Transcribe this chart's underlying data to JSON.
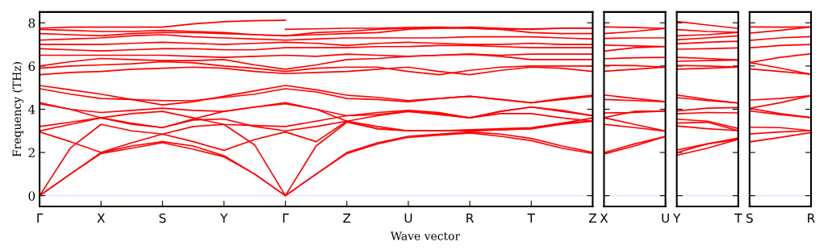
{
  "chart_data": [
    {
      "type": "line",
      "ylabel": "Frequency (THz)",
      "xlabel": "Wave vector",
      "color": "#ff0000",
      "marker": "none",
      "line_style": "solid",
      "grid": false,
      "legend": false,
      "categories": [
        "Γ",
        null,
        "X",
        null,
        "S",
        null,
        "Y",
        null,
        "Γ",
        null,
        "Z",
        null,
        "U",
        null,
        "R",
        null,
        "T",
        null,
        "Z"
      ],
      "ylim": [
        -0.5,
        8.5
      ],
      "yticks": [
        0,
        2,
        4,
        6,
        8
      ],
      "ref_lines": [
        {
          "axis": "y",
          "value": 0,
          "label": null,
          "color": "#8080ff",
          "line_style": "dotted"
        }
      ],
      "series": [
        {
          "values": [
            0,
            1.0,
            1.95,
            2.2,
            2.45,
            2.15,
            1.8,
            1.0,
            0,
            1.0,
            1.95,
            2.4,
            2.7,
            2.8,
            2.9,
            2.75,
            2.55,
            2.2,
            1.95
          ]
        },
        {
          "values": [
            0,
            1.0,
            2.0,
            2.3,
            2.5,
            2.3,
            1.85,
            1.0,
            0,
            1.0,
            2.0,
            2.45,
            2.75,
            2.85,
            2.95,
            2.85,
            2.65,
            2.3,
            2.0
          ]
        },
        {
          "values": [
            0,
            2.2,
            3.3,
            3.0,
            2.85,
            3.2,
            3.3,
            2.35,
            0,
            2.3,
            3.4,
            3.1,
            3.0,
            3.0,
            3.0,
            3.05,
            3.1,
            3.3,
            3.45
          ]
        },
        {
          "values": [
            2.95,
            2.5,
            2.0,
            2.45,
            2.85,
            2.5,
            2.1,
            2.6,
            2.95,
            2.5,
            3.45,
            3.2,
            3.0,
            3.0,
            3.0,
            3.05,
            3.1,
            3.35,
            3.6
          ]
        },
        {
          "values": [
            3.0,
            3.3,
            3.6,
            3.35,
            3.15,
            3.5,
            3.55,
            3.2,
            3.0,
            3.2,
            3.45,
            3.7,
            3.9,
            3.75,
            3.6,
            3.9,
            4.1,
            3.9,
            3.7
          ]
        },
        {
          "values": [
            3.2,
            3.4,
            3.6,
            3.8,
            3.9,
            3.6,
            3.3,
            3.25,
            3.2,
            3.45,
            3.7,
            3.75,
            3.9,
            3.8,
            3.6,
            3.8,
            3.8,
            3.6,
            3.45
          ]
        },
        {
          "values": [
            4.25,
            4.0,
            3.85,
            3.95,
            4.05,
            3.95,
            3.9,
            4.1,
            4.25,
            4.0,
            3.7,
            3.85,
            3.95,
            3.85,
            3.6,
            3.9,
            4.1,
            3.95,
            3.7
          ]
        },
        {
          "values": [
            4.3,
            4.0,
            3.6,
            3.3,
            3.15,
            3.55,
            3.9,
            4.1,
            4.3,
            4.0,
            3.45,
            3.1,
            3.0,
            3.0,
            3.05,
            3.1,
            3.15,
            3.35,
            3.45
          ]
        },
        {
          "values": [
            4.95,
            4.7,
            4.5,
            4.45,
            4.4,
            4.4,
            4.55,
            4.7,
            4.95,
            4.8,
            4.5,
            4.45,
            4.35,
            4.5,
            4.6,
            4.45,
            4.3,
            4.45,
            4.6
          ]
        },
        {
          "values": [
            5.1,
            4.9,
            4.7,
            4.45,
            4.2,
            4.35,
            4.6,
            4.85,
            5.1,
            4.9,
            4.65,
            4.55,
            4.4,
            4.5,
            4.6,
            4.45,
            4.3,
            4.5,
            4.65
          ]
        },
        {
          "values": [
            5.6,
            5.7,
            5.75,
            5.85,
            5.9,
            5.95,
            5.9,
            5.75,
            5.65,
            5.7,
            5.75,
            5.85,
            5.95,
            5.75,
            5.6,
            5.8,
            5.95,
            5.9,
            5.75
          ]
        },
        {
          "values": [
            5.9,
            6.0,
            6.05,
            6.1,
            6.2,
            6.15,
            6.0,
            5.9,
            5.75,
            5.9,
            5.95,
            5.95,
            5.75,
            5.6,
            5.8,
            5.95,
            6.0,
            6.0,
            6.0
          ]
        },
        {
          "values": [
            6.0,
            6.2,
            6.35,
            6.3,
            6.25,
            6.25,
            6.3,
            6.05,
            5.85,
            6.05,
            6.3,
            6.35,
            6.45,
            6.5,
            6.55,
            6.45,
            6.3,
            6.3,
            6.3
          ]
        },
        {
          "values": [
            6.5,
            6.5,
            6.5,
            6.5,
            6.5,
            6.45,
            6.4,
            6.45,
            6.5,
            6.45,
            6.55,
            6.5,
            6.45,
            6.5,
            6.55,
            6.5,
            6.55,
            6.55,
            6.55
          ]
        },
        {
          "values": [
            6.8,
            6.75,
            6.7,
            6.75,
            6.8,
            6.8,
            6.75,
            6.75,
            6.85,
            6.85,
            6.85,
            6.9,
            6.9,
            6.95,
            6.95,
            6.9,
            6.85,
            6.85,
            6.85
          ]
        },
        {
          "values": [
            7.0,
            7.0,
            7.0,
            7.05,
            7.1,
            7.05,
            7.0,
            7.05,
            7.1,
            7.05,
            6.95,
            7.05,
            7.1,
            7.05,
            7.0,
            7.0,
            7.05,
            7.0,
            7.0
          ]
        },
        {
          "values": [
            7.2,
            7.25,
            7.3,
            7.4,
            7.45,
            7.35,
            7.3,
            7.25,
            7.2,
            7.25,
            7.3,
            7.3,
            7.3,
            7.3,
            7.35,
            7.35,
            7.35,
            7.3,
            7.25
          ]
        },
        {
          "values": [
            7.5,
            7.45,
            7.4,
            7.5,
            7.55,
            7.55,
            7.5,
            7.45,
            7.4,
            7.45,
            7.5,
            7.55,
            7.7,
            7.75,
            7.75,
            7.7,
            7.55,
            7.5,
            7.5
          ]
        },
        {
          "values": [
            7.75,
            7.8,
            7.8,
            7.8,
            7.8,
            7.95,
            8.05,
            8.1,
            8.12,
            null,
            null,
            null,
            null,
            null,
            null,
            null,
            null,
            null,
            null
          ]
        },
        {
          "values": [
            null,
            null,
            null,
            null,
            null,
            null,
            null,
            null,
            7.7,
            7.72,
            7.75,
            7.75,
            7.78,
            7.8,
            7.75,
            7.7,
            7.72,
            7.75,
            7.75
          ]
        },
        {
          "values": [
            7.7,
            7.65,
            7.6,
            7.6,
            7.65,
            7.6,
            7.55,
            7.45,
            7.4,
            7.55,
            7.6,
            7.7,
            7.75,
            7.75,
            7.8,
            7.75,
            7.7,
            7.75,
            7.75
          ]
        }
      ]
    },
    {
      "type": "line",
      "color": "#ff0000",
      "marker": "none",
      "line_style": "solid",
      "grid": false,
      "legend": false,
      "tick_labels": "x",
      "categories": [
        "X",
        null,
        "U"
      ],
      "ylim": [
        -0.5,
        8.5
      ],
      "yticks": [
        0,
        2,
        4,
        6,
        8
      ],
      "ref_lines": [
        {
          "axis": "y",
          "value": 0,
          "label": null,
          "color": "#8080ff",
          "line_style": "dotted"
        }
      ],
      "series": [
        {
          "values": [
            7.81,
            7.78,
            7.74
          ]
        },
        {
          "values": [
            7.5,
            7.6,
            7.74
          ]
        },
        {
          "values": [
            7.28,
            7.3,
            7.3
          ]
        },
        {
          "values": [
            6.97,
            6.93,
            6.9
          ]
        },
        {
          "values": [
            6.69,
            6.85,
            6.9
          ]
        },
        {
          "values": [
            6.34,
            6.38,
            6.4
          ]
        },
        {
          "values": [
            6.03,
            6.02,
            5.95
          ]
        },
        {
          "values": [
            5.76,
            5.85,
            5.95
          ]
        },
        {
          "values": [
            4.66,
            4.5,
            4.35
          ]
        },
        {
          "values": [
            4.45,
            4.4,
            4.35
          ]
        },
        {
          "values": [
            3.61,
            3.9,
            3.92
          ]
        },
        {
          "values": [
            3.83,
            3.85,
            3.92
          ]
        },
        {
          "values": [
            3.61,
            3.3,
            2.99
          ]
        },
        {
          "values": [
            3.3,
            3.15,
            2.99
          ]
        },
        {
          "values": [
            1.99,
            2.4,
            2.74
          ]
        },
        {
          "values": [
            1.93,
            2.3,
            2.74
          ]
        }
      ]
    },
    {
      "type": "line",
      "color": "#ff0000",
      "marker": "none",
      "line_style": "solid",
      "grid": false,
      "legend": false,
      "tick_labels": "x",
      "categories": [
        "Y",
        null,
        "T"
      ],
      "ylim": [
        -0.5,
        8.5
      ],
      "yticks": [
        0,
        2,
        4,
        6,
        8
      ],
      "ref_lines": [
        {
          "axis": "y",
          "value": 0,
          "label": null,
          "color": "#8080ff",
          "line_style": "dotted"
        }
      ],
      "series": [
        {
          "values": [
            8.06,
            7.9,
            7.74
          ]
        },
        {
          "values": [
            7.69,
            7.6,
            7.56
          ]
        },
        {
          "values": [
            7.4,
            7.45,
            7.56
          ]
        },
        {
          "values": [
            7.21,
            7.3,
            7.4
          ]
        },
        {
          "values": [
            7.03,
            7.1,
            7.15
          ]
        },
        {
          "values": [
            6.78,
            6.8,
            6.84
          ]
        },
        {
          "values": [
            6.4,
            6.35,
            6.28
          ]
        },
        {
          "values": [
            6.22,
            6.25,
            6.28
          ]
        },
        {
          "values": [
            6.03,
            6.0,
            5.95
          ]
        },
        {
          "values": [
            5.85,
            5.9,
            5.95
          ]
        },
        {
          "values": [
            4.66,
            4.45,
            4.29
          ]
        },
        {
          "values": [
            4.54,
            4.4,
            4.29
          ]
        },
        {
          "values": [
            3.92,
            4.05,
            4.08
          ]
        },
        {
          "values": [
            3.79,
            3.85,
            3.83
          ]
        },
        {
          "values": [
            3.54,
            3.45,
            3.11
          ]
        },
        {
          "values": [
            3.36,
            3.4,
            3.01
          ]
        },
        {
          "values": [
            3.23,
            3.1,
            3.01
          ]
        },
        {
          "values": [
            2.11,
            2.4,
            2.67
          ]
        },
        {
          "values": [
            1.99,
            2.4,
            2.61
          ]
        },
        {
          "values": [
            1.87,
            2.2,
            2.61
          ]
        }
      ]
    },
    {
      "type": "line",
      "color": "#ff0000",
      "marker": "none",
      "line_style": "solid",
      "grid": false,
      "legend": false,
      "tick_labels": "x",
      "categories": [
        "S",
        null,
        "R"
      ],
      "ylim": [
        -0.5,
        8.5
      ],
      "yticks": [
        0,
        2,
        4,
        6,
        8
      ],
      "ref_lines": [
        {
          "axis": "y",
          "value": 0,
          "label": null,
          "color": "#8080ff",
          "line_style": "dotted"
        }
      ],
      "series": [
        {
          "values": [
            7.81,
            7.8,
            7.81
          ]
        },
        {
          "values": [
            7.52,
            7.65,
            7.81
          ]
        },
        {
          "values": [
            7.19,
            7.3,
            7.36
          ]
        },
        {
          "values": [
            6.84,
            6.95,
            7.0
          ]
        },
        {
          "values": [
            6.16,
            6.4,
            6.57
          ]
        },
        {
          "values": [
            6.16,
            5.9,
            5.62
          ]
        },
        {
          "values": [
            5.87,
            5.75,
            5.62
          ]
        },
        {
          "values": [
            4.42,
            4.5,
            4.63
          ]
        },
        {
          "values": [
            4.04,
            4.3,
            4.63
          ]
        },
        {
          "values": [
            4.04,
            3.8,
            3.61
          ]
        },
        {
          "values": [
            3.92,
            3.75,
            3.61
          ]
        },
        {
          "values": [
            3.17,
            3.15,
            3.01
          ]
        },
        {
          "values": [
            2.86,
            2.95,
            3.01
          ]
        },
        {
          "values": [
            2.49,
            2.7,
            2.92
          ]
        }
      ]
    }
  ]
}
